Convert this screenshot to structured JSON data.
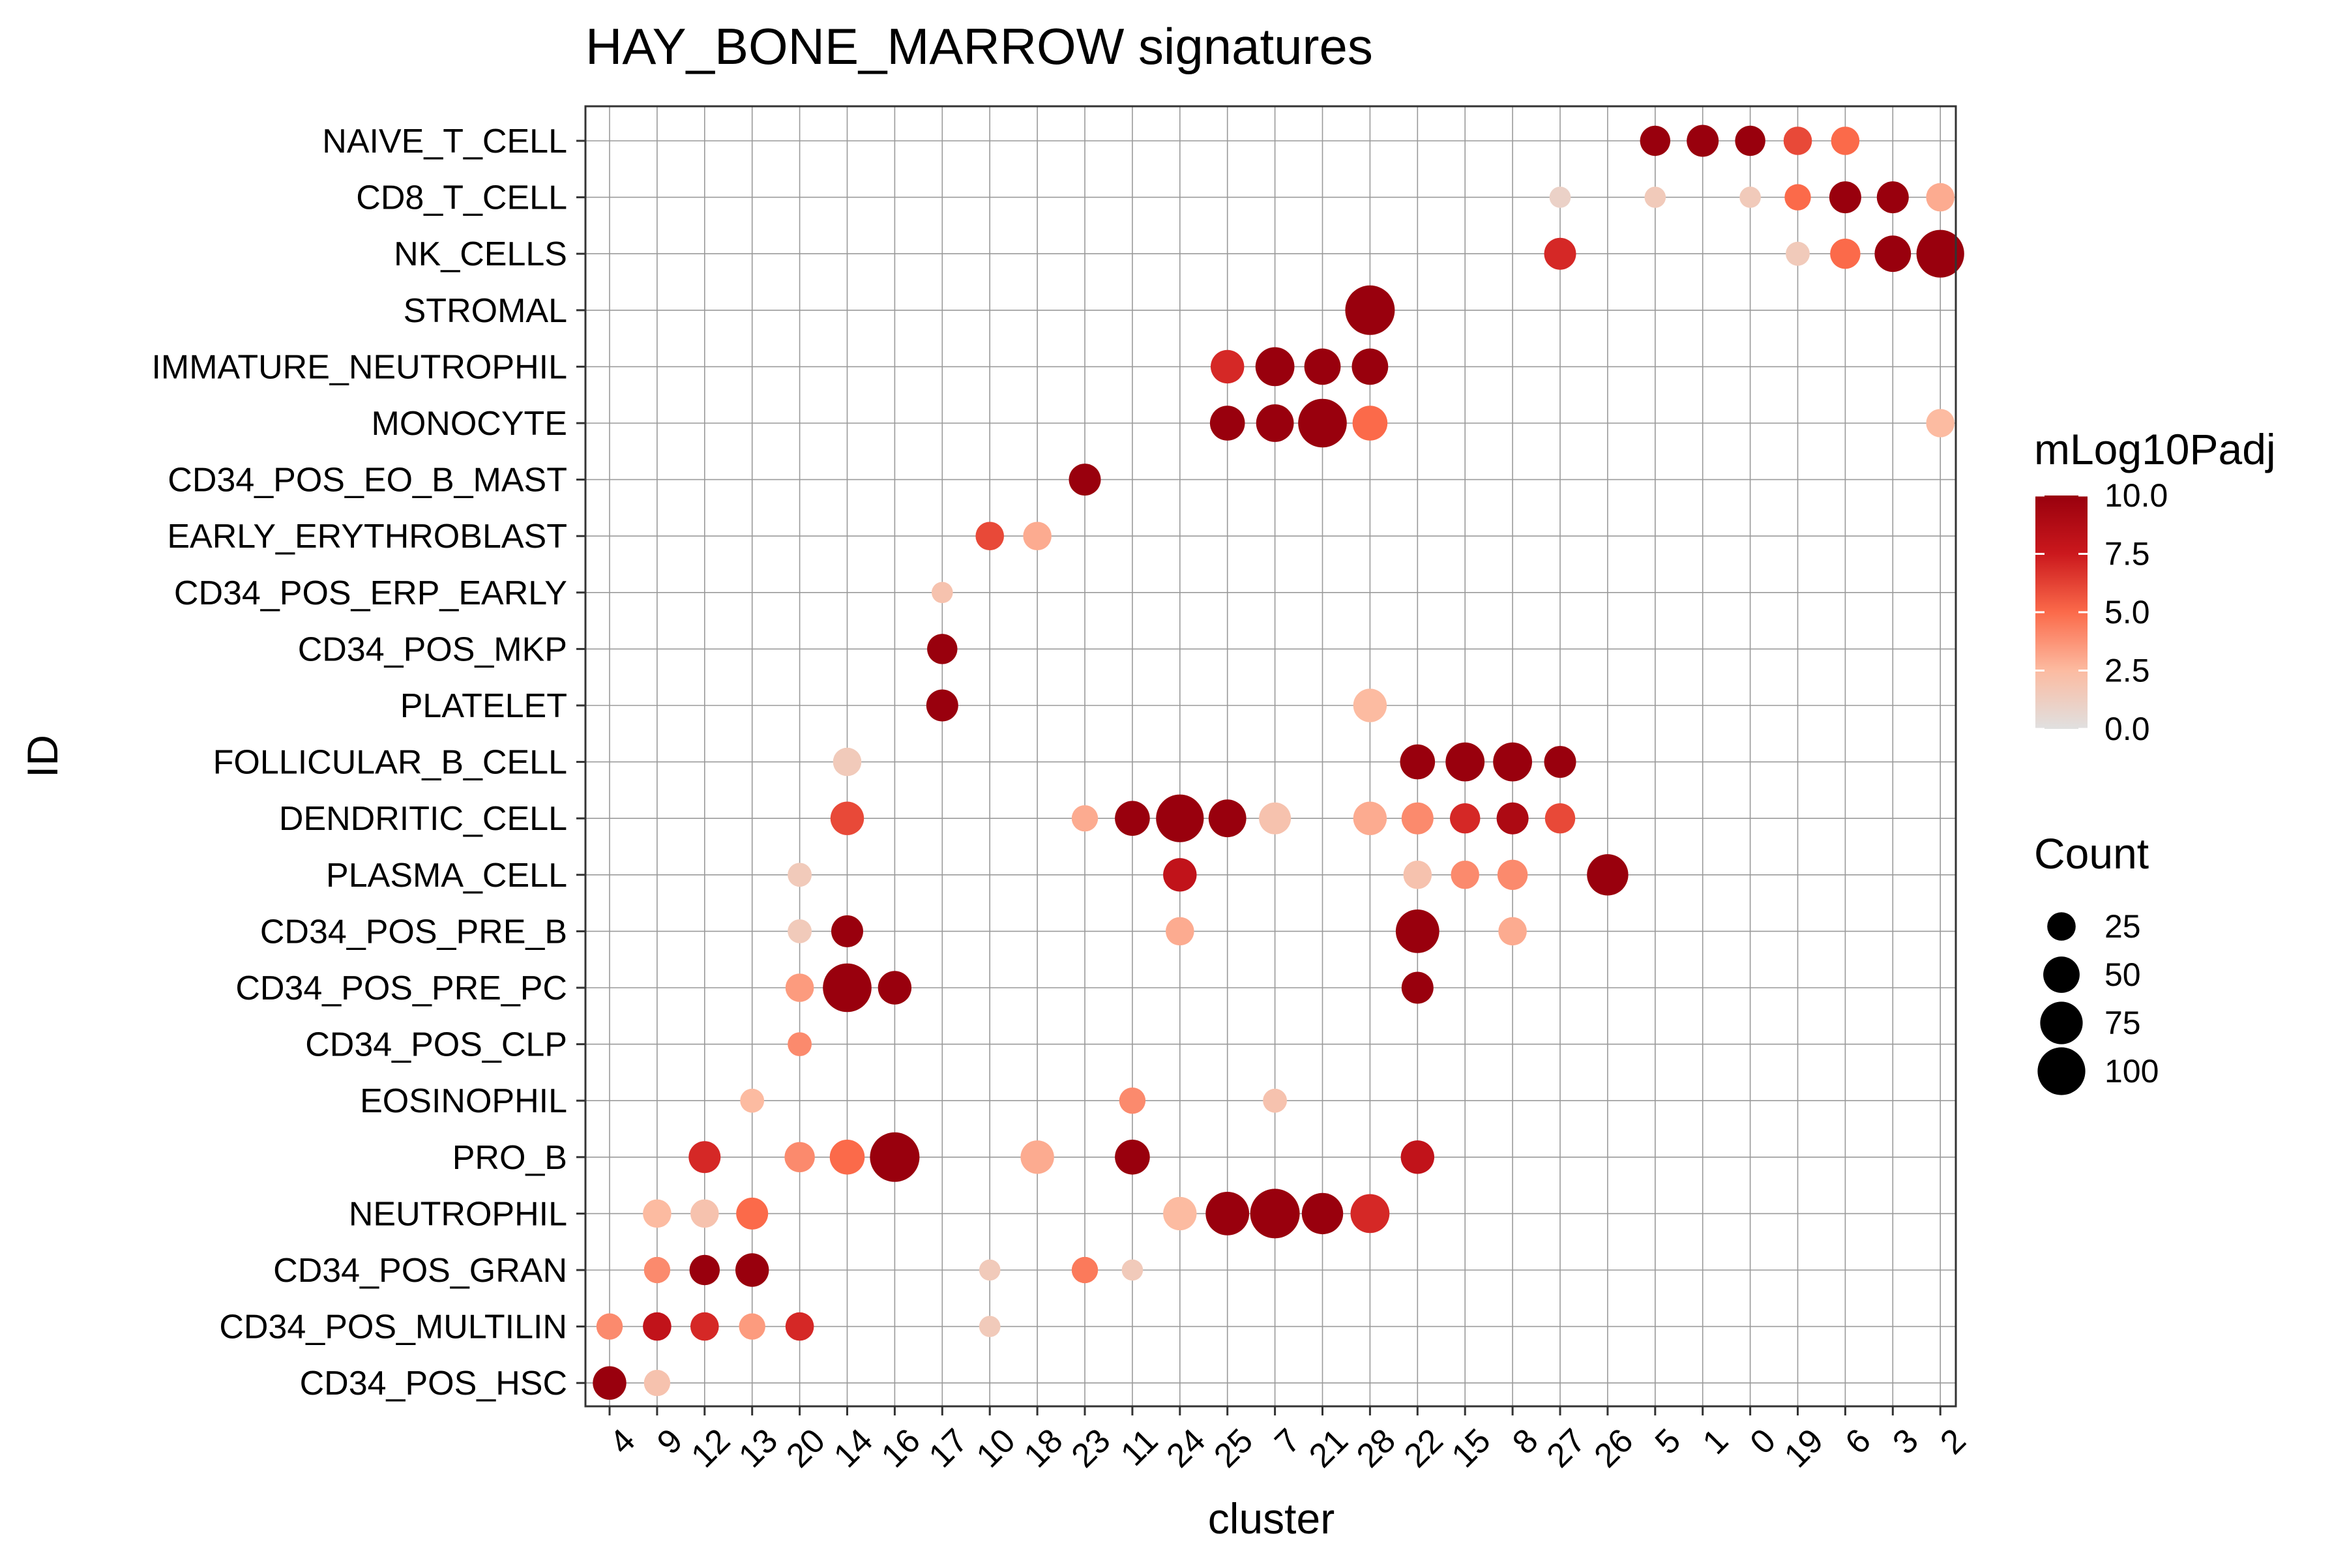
{
  "chart_data": {
    "type": "scatter",
    "title": "HAY_BONE_MARROW signatures",
    "xlabel": "cluster",
    "ylabel": "ID",
    "grid": true,
    "legend_placement": "right",
    "x_categories": [
      "4",
      "9",
      "12",
      "13",
      "20",
      "14",
      "16",
      "17",
      "10",
      "18",
      "23",
      "11",
      "24",
      "25",
      "7",
      "21",
      "28",
      "22",
      "15",
      "8",
      "27",
      "26",
      "5",
      "1",
      "0",
      "19",
      "6",
      "3",
      "2"
    ],
    "y_categories": [
      "NAIVE_T_CELL",
      "CD8_T_CELL",
      "NK_CELLS",
      "STROMAL",
      "IMMATURE_NEUTROPHIL",
      "MONOCYTE",
      "CD34_POS_EO_B_MAST",
      "EARLY_ERYTHROBLAST",
      "CD34_POS_ERP_EARLY",
      "CD34_POS_MKP",
      "PLATELET",
      "FOLLICULAR_B_CELL",
      "DENDRITIC_CELL",
      "PLASMA_CELL",
      "CD34_POS_PRE_B",
      "CD34_POS_PRE_PC",
      "CD34_POS_CLP",
      "EOSINOPHIL",
      "PRO_B",
      "NEUTROPHIL",
      "CD34_POS_GRAN",
      "CD34_POS_MULTILIN",
      "CD34_POS_HSC"
    ],
    "color_legend": {
      "title": "mLog10Padj",
      "range": [
        0,
        10
      ],
      "ticks": [
        "10.0",
        "7.5",
        "5.0",
        "2.5",
        "0.0"
      ],
      "tick_values": [
        10,
        7.5,
        5,
        2.5,
        0
      ],
      "colors": [
        "#e0e0e0",
        "#fcbba1",
        "#fb6a4a",
        "#cb181d",
        "#99000d"
      ]
    },
    "size_legend": {
      "title": "Count",
      "values": [
        25,
        50,
        75,
        100
      ],
      "labels": [
        "25",
        "50",
        "75",
        "100"
      ]
    },
    "points": [
      {
        "x": "5",
        "y": "NAIVE_T_CELL",
        "count": 30,
        "padj": 10
      },
      {
        "x": "1",
        "y": "NAIVE_T_CELL",
        "count": 35,
        "padj": 10
      },
      {
        "x": "0",
        "y": "NAIVE_T_CELL",
        "count": 30,
        "padj": 10
      },
      {
        "x": "19",
        "y": "NAIVE_T_CELL",
        "count": 25,
        "padj": 6
      },
      {
        "x": "6",
        "y": "NAIVE_T_CELL",
        "count": 25,
        "padj": 5
      },
      {
        "x": "27",
        "y": "CD8_T_CELL",
        "count": 10,
        "padj": 1
      },
      {
        "x": "5",
        "y": "CD8_T_CELL",
        "count": 10,
        "padj": 1.5
      },
      {
        "x": "0",
        "y": "CD8_T_CELL",
        "count": 10,
        "padj": 1.5
      },
      {
        "x": "19",
        "y": "CD8_T_CELL",
        "count": 20,
        "padj": 5
      },
      {
        "x": "6",
        "y": "CD8_T_CELL",
        "count": 35,
        "padj": 10
      },
      {
        "x": "3",
        "y": "CD8_T_CELL",
        "count": 35,
        "padj": 10
      },
      {
        "x": "2",
        "y": "CD8_T_CELL",
        "count": 25,
        "padj": 3
      },
      {
        "x": "27",
        "y": "NK_CELLS",
        "count": 35,
        "padj": 7
      },
      {
        "x": "19",
        "y": "NK_CELLS",
        "count": 15,
        "padj": 1.5
      },
      {
        "x": "6",
        "y": "NK_CELLS",
        "count": 30,
        "padj": 5
      },
      {
        "x": "3",
        "y": "NK_CELLS",
        "count": 50,
        "padj": 10
      },
      {
        "x": "2",
        "y": "NK_CELLS",
        "count": 100,
        "padj": 10
      },
      {
        "x": "28",
        "y": "STROMAL",
        "count": 110,
        "padj": 10
      },
      {
        "x": "25",
        "y": "IMMATURE_NEUTROPHIL",
        "count": 40,
        "padj": 7
      },
      {
        "x": "7",
        "y": "IMMATURE_NEUTROPHIL",
        "count": 60,
        "padj": 10
      },
      {
        "x": "21",
        "y": "IMMATURE_NEUTROPHIL",
        "count": 50,
        "padj": 10
      },
      {
        "x": "28",
        "y": "IMMATURE_NEUTROPHIL",
        "count": 50,
        "padj": 10
      },
      {
        "x": "25",
        "y": "MONOCYTE",
        "count": 45,
        "padj": 10
      },
      {
        "x": "7",
        "y": "MONOCYTE",
        "count": 55,
        "padj": 10
      },
      {
        "x": "21",
        "y": "MONOCYTE",
        "count": 105,
        "padj": 10
      },
      {
        "x": "28",
        "y": "MONOCYTE",
        "count": 45,
        "padj": 5
      },
      {
        "x": "2",
        "y": "MONOCYTE",
        "count": 25,
        "padj": 2.5
      },
      {
        "x": "23",
        "y": "CD34_POS_EO_B_MAST",
        "count": 35,
        "padj": 10
      },
      {
        "x": "10",
        "y": "EARLY_ERYTHROBLAST",
        "count": 25,
        "padj": 6
      },
      {
        "x": "18",
        "y": "EARLY_ERYTHROBLAST",
        "count": 25,
        "padj": 3
      },
      {
        "x": "17",
        "y": "CD34_POS_ERP_EARLY",
        "count": 10,
        "padj": 2
      },
      {
        "x": "17",
        "y": "CD34_POS_MKP",
        "count": 30,
        "padj": 10
      },
      {
        "x": "17",
        "y": "PLATELET",
        "count": 35,
        "padj": 10
      },
      {
        "x": "28",
        "y": "PLATELET",
        "count": 40,
        "padj": 2.5
      },
      {
        "x": "14",
        "y": "FOLLICULAR_B_CELL",
        "count": 25,
        "padj": 1.5
      },
      {
        "x": "22",
        "y": "FOLLICULAR_B_CELL",
        "count": 45,
        "padj": 10
      },
      {
        "x": "15",
        "y": "FOLLICULAR_B_CELL",
        "count": 60,
        "padj": 10
      },
      {
        "x": "8",
        "y": "FOLLICULAR_B_CELL",
        "count": 60,
        "padj": 10
      },
      {
        "x": "27",
        "y": "FOLLICULAR_B_CELL",
        "count": 35,
        "padj": 10
      },
      {
        "x": "14",
        "y": "DENDRITIC_CELL",
        "count": 40,
        "padj": 6
      },
      {
        "x": "23",
        "y": "DENDRITIC_CELL",
        "count": 20,
        "padj": 3
      },
      {
        "x": "11",
        "y": "DENDRITIC_CELL",
        "count": 45,
        "padj": 10
      },
      {
        "x": "24",
        "y": "DENDRITIC_CELL",
        "count": 100,
        "padj": 10
      },
      {
        "x": "25",
        "y": "DENDRITIC_CELL",
        "count": 55,
        "padj": 10
      },
      {
        "x": "7",
        "y": "DENDRITIC_CELL",
        "count": 35,
        "padj": 2
      },
      {
        "x": "28",
        "y": "DENDRITIC_CELL",
        "count": 40,
        "padj": 3
      },
      {
        "x": "22",
        "y": "DENDRITIC_CELL",
        "count": 35,
        "padj": 4
      },
      {
        "x": "15",
        "y": "DENDRITIC_CELL",
        "count": 30,
        "padj": 7
      },
      {
        "x": "8",
        "y": "DENDRITIC_CELL",
        "count": 35,
        "padj": 9
      },
      {
        "x": "27",
        "y": "DENDRITIC_CELL",
        "count": 30,
        "padj": 6
      },
      {
        "x": "20",
        "y": "PLASMA_CELL",
        "count": 15,
        "padj": 1.5
      },
      {
        "x": "24",
        "y": "PLASMA_CELL",
        "count": 40,
        "padj": 8
      },
      {
        "x": "22",
        "y": "PLASMA_CELL",
        "count": 25,
        "padj": 2
      },
      {
        "x": "15",
        "y": "PLASMA_CELL",
        "count": 25,
        "padj": 4
      },
      {
        "x": "8",
        "y": "PLASMA_CELL",
        "count": 30,
        "padj": 4
      },
      {
        "x": "26",
        "y": "PLASMA_CELL",
        "count": 70,
        "padj": 10
      },
      {
        "x": "20",
        "y": "CD34_POS_PRE_B",
        "count": 15,
        "padj": 1.5
      },
      {
        "x": "14",
        "y": "CD34_POS_PRE_B",
        "count": 35,
        "padj": 10
      },
      {
        "x": "24",
        "y": "CD34_POS_PRE_B",
        "count": 25,
        "padj": 3
      },
      {
        "x": "22",
        "y": "CD34_POS_PRE_B",
        "count": 80,
        "padj": 10
      },
      {
        "x": "8",
        "y": "CD34_POS_PRE_B",
        "count": 25,
        "padj": 3
      },
      {
        "x": "20",
        "y": "CD34_POS_PRE_PC",
        "count": 25,
        "padj": 3.5
      },
      {
        "x": "14",
        "y": "CD34_POS_PRE_PC",
        "count": 105,
        "padj": 10
      },
      {
        "x": "16",
        "y": "CD34_POS_PRE_PC",
        "count": 40,
        "padj": 10
      },
      {
        "x": "22",
        "y": "CD34_POS_PRE_PC",
        "count": 35,
        "padj": 10
      },
      {
        "x": "20",
        "y": "CD34_POS_CLP",
        "count": 15,
        "padj": 4
      },
      {
        "x": "13",
        "y": "EOSINOPHIL",
        "count": 15,
        "padj": 2.5
      },
      {
        "x": "11",
        "y": "EOSINOPHIL",
        "count": 20,
        "padj": 4
      },
      {
        "x": "7",
        "y": "EOSINOPHIL",
        "count": 15,
        "padj": 2
      },
      {
        "x": "12",
        "y": "PRO_B",
        "count": 35,
        "padj": 7
      },
      {
        "x": "20",
        "y": "PRO_B",
        "count": 30,
        "padj": 4
      },
      {
        "x": "14",
        "y": "PRO_B",
        "count": 45,
        "padj": 5
      },
      {
        "x": "16",
        "y": "PRO_B",
        "count": 110,
        "padj": 10
      },
      {
        "x": "18",
        "y": "PRO_B",
        "count": 40,
        "padj": 3
      },
      {
        "x": "11",
        "y": "PRO_B",
        "count": 45,
        "padj": 10
      },
      {
        "x": "22",
        "y": "PRO_B",
        "count": 40,
        "padj": 8
      },
      {
        "x": "9",
        "y": "NEUTROPHIL",
        "count": 25,
        "padj": 2.5
      },
      {
        "x": "12",
        "y": "NEUTROPHIL",
        "count": 25,
        "padj": 2
      },
      {
        "x": "13",
        "y": "NEUTROPHIL",
        "count": 35,
        "padj": 5
      },
      {
        "x": "24",
        "y": "NEUTROPHIL",
        "count": 40,
        "padj": 2.5
      },
      {
        "x": "25",
        "y": "NEUTROPHIL",
        "count": 80,
        "padj": 10
      },
      {
        "x": "7",
        "y": "NEUTROPHIL",
        "count": 110,
        "padj": 10
      },
      {
        "x": "21",
        "y": "NEUTROPHIL",
        "count": 70,
        "padj": 10
      },
      {
        "x": "28",
        "y": "NEUTROPHIL",
        "count": 60,
        "padj": 7
      },
      {
        "x": "9",
        "y": "CD34_POS_GRAN",
        "count": 20,
        "padj": 4
      },
      {
        "x": "12",
        "y": "CD34_POS_GRAN",
        "count": 30,
        "padj": 10
      },
      {
        "x": "13",
        "y": "CD34_POS_GRAN",
        "count": 40,
        "padj": 10
      },
      {
        "x": "10",
        "y": "CD34_POS_GRAN",
        "count": 10,
        "padj": 1.5
      },
      {
        "x": "23",
        "y": "CD34_POS_GRAN",
        "count": 20,
        "padj": 4.5
      },
      {
        "x": "11",
        "y": "CD34_POS_GRAN",
        "count": 10,
        "padj": 1.5
      },
      {
        "x": "4",
        "y": "CD34_POS_MULTILIN",
        "count": 20,
        "padj": 4
      },
      {
        "x": "9",
        "y": "CD34_POS_MULTILIN",
        "count": 25,
        "padj": 8
      },
      {
        "x": "12",
        "y": "CD34_POS_MULTILIN",
        "count": 25,
        "padj": 7
      },
      {
        "x": "13",
        "y": "CD34_POS_MULTILIN",
        "count": 20,
        "padj": 3.5
      },
      {
        "x": "20",
        "y": "CD34_POS_MULTILIN",
        "count": 25,
        "padj": 7
      },
      {
        "x": "10",
        "y": "CD34_POS_MULTILIN",
        "count": 10,
        "padj": 1.5
      },
      {
        "x": "4",
        "y": "CD34_POS_HSC",
        "count": 40,
        "padj": 10
      },
      {
        "x": "9",
        "y": "CD34_POS_HSC",
        "count": 20,
        "padj": 2
      }
    ]
  }
}
